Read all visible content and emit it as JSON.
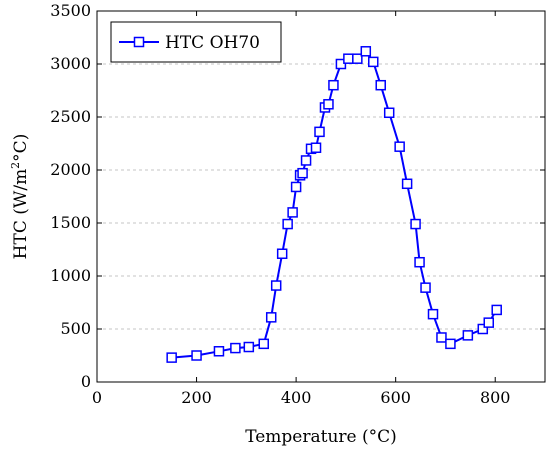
{
  "chart_data": {
    "type": "line",
    "title": "",
    "xlabel": "Temperature (°C)",
    "ylabel_main": "HTC (W/m",
    "ylabel_sup": "2",
    "ylabel_tail": "°C)",
    "xlim": [
      0,
      900
    ],
    "ylim": [
      0,
      3500
    ],
    "xticks": [
      0,
      200,
      400,
      600,
      800
    ],
    "yticks": [
      0,
      500,
      1000,
      1500,
      2000,
      2500,
      3000,
      3500
    ],
    "grid": "horizontal dashed",
    "legend_position": "top-left",
    "series": [
      {
        "name": "HTC OH70",
        "color": "#0000ff",
        "marker": "square",
        "x": [
          150,
          200,
          245,
          278,
          305,
          335,
          350,
          360,
          372,
          383,
          393,
          400,
          408,
          413,
          420,
          430,
          440,
          447,
          458,
          465,
          475,
          490,
          505,
          523,
          540,
          555,
          570,
          587,
          608,
          623,
          640,
          648,
          660,
          675,
          692,
          710,
          745,
          775,
          787,
          803
        ],
        "y": [
          230,
          250,
          290,
          320,
          330,
          360,
          610,
          910,
          1210,
          1490,
          1600,
          1840,
          1950,
          1970,
          2090,
          2200,
          2210,
          2360,
          2590,
          2620,
          2800,
          3000,
          3050,
          3050,
          3120,
          3020,
          2800,
          2540,
          2220,
          1870,
          1490,
          1130,
          890,
          640,
          420,
          360,
          440,
          500,
          560,
          680
        ]
      }
    ]
  }
}
